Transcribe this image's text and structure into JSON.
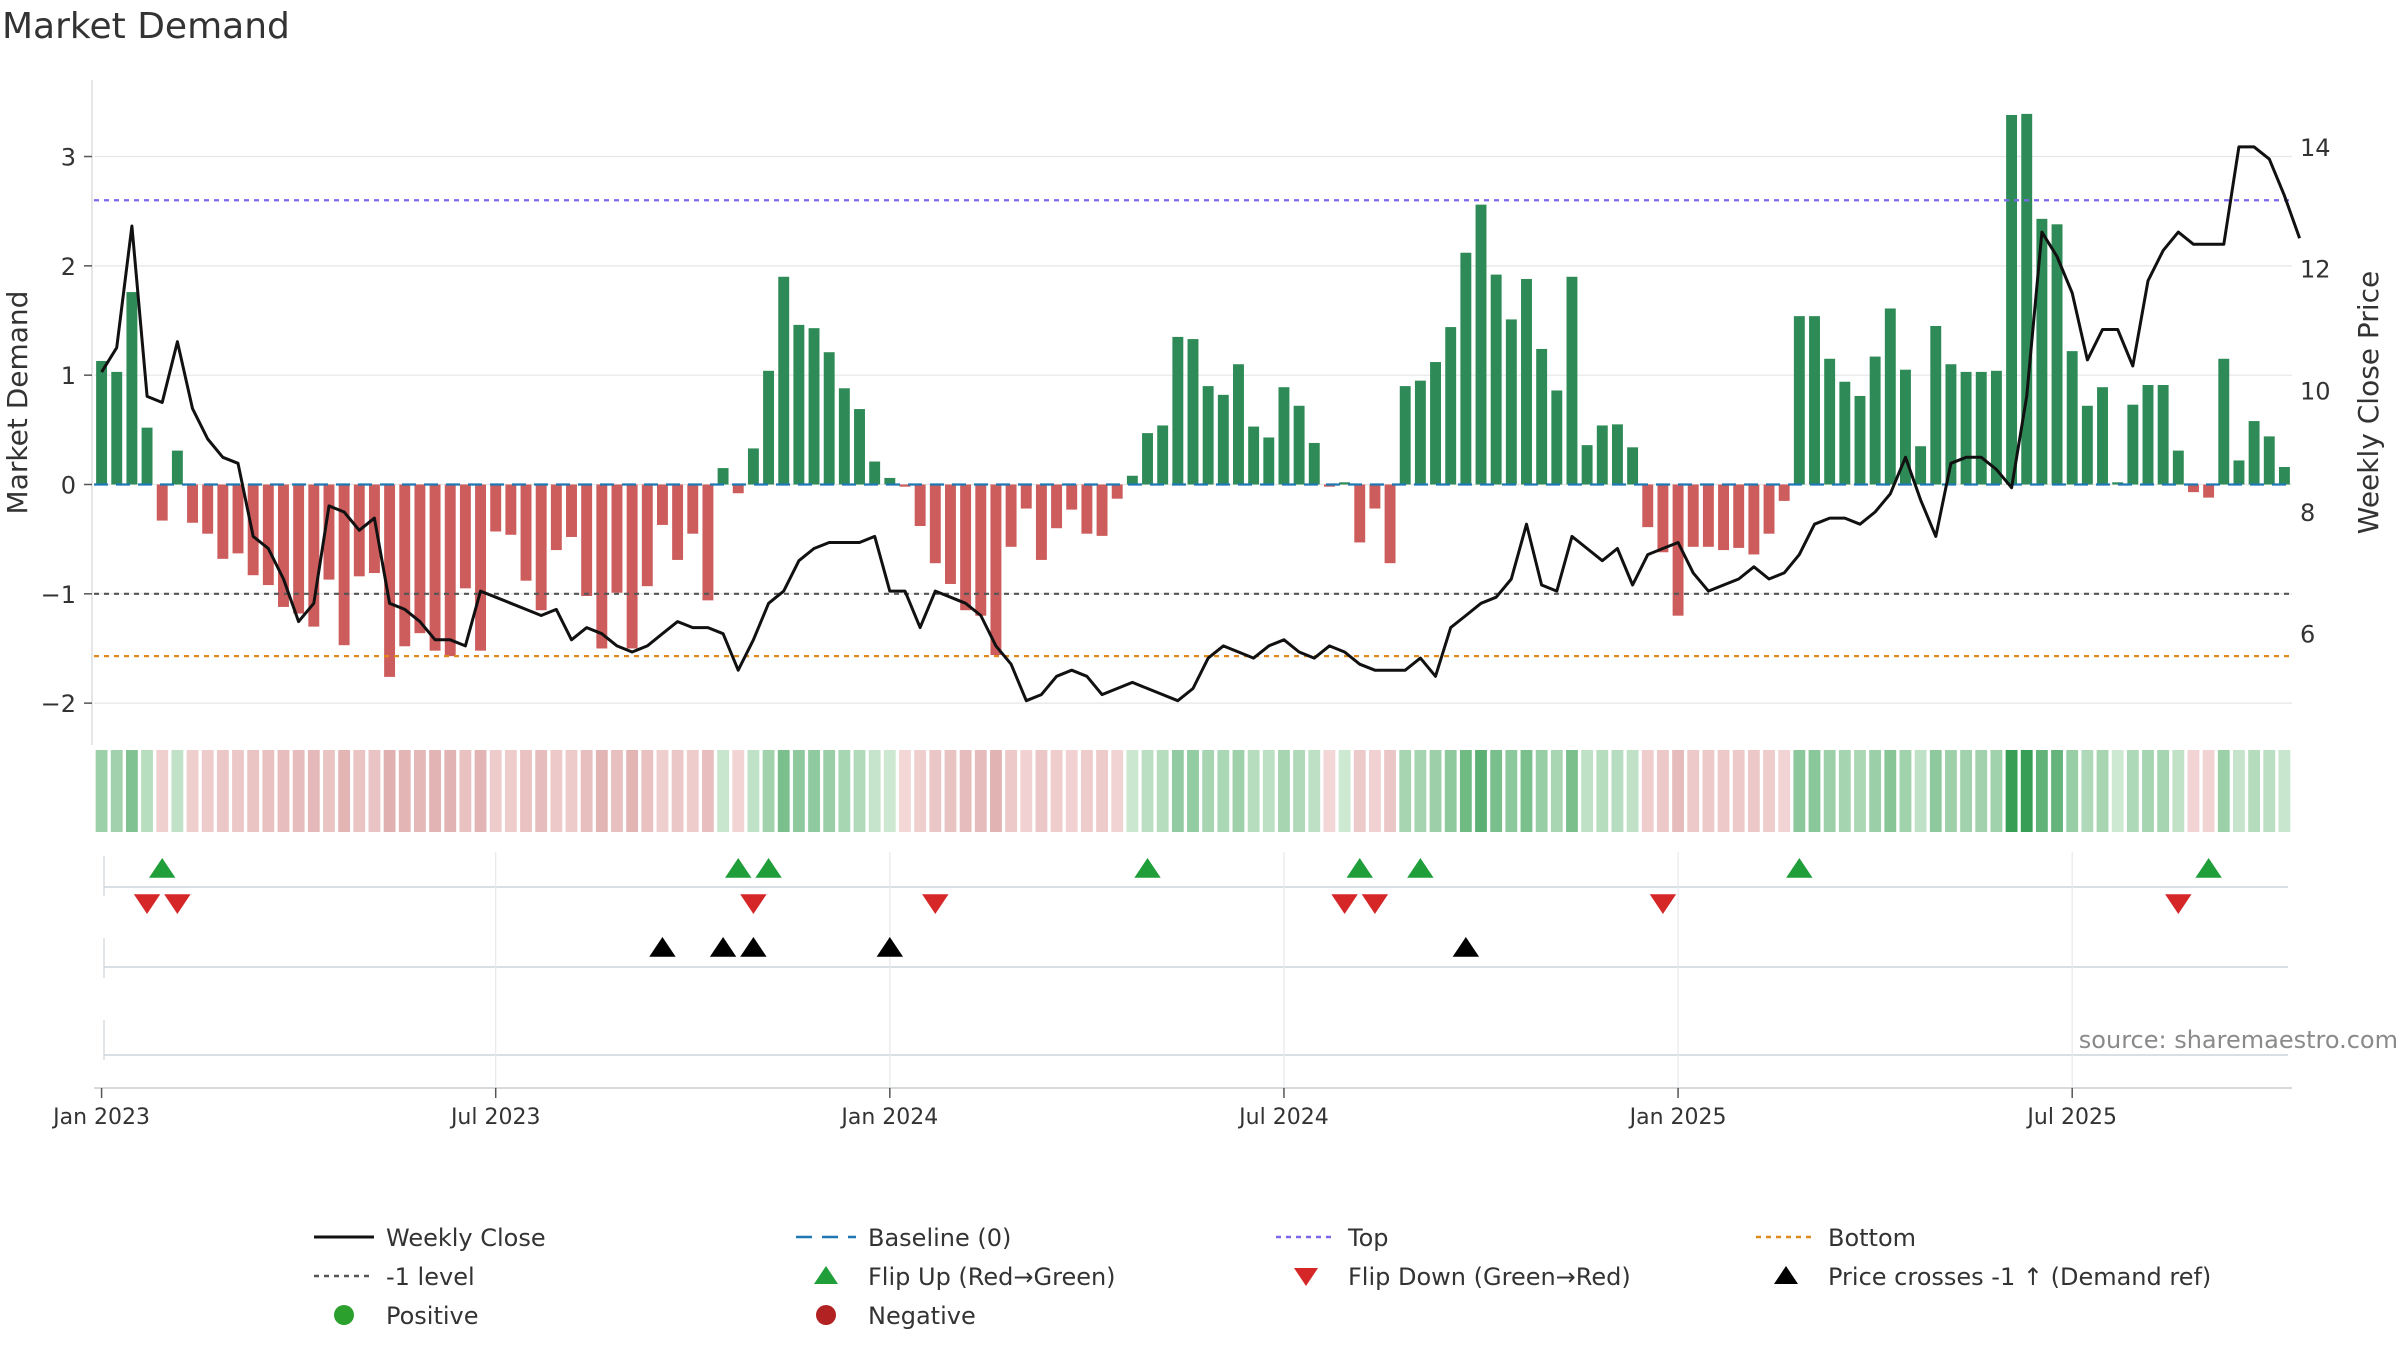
{
  "title": "Market Demand",
  "source": "source: sharemaestro.com",
  "colors": {
    "positive": "#2e8b57",
    "negative": "#cd5c5c",
    "price": "#111111",
    "baseline": "#1f77b4",
    "top": "#7b68ee",
    "bottom": "#e08a1e",
    "minus1": "#555555",
    "flip_up": "#1f9e3a",
    "flip_down": "#d62728",
    "cross": "#000000",
    "legend_pos": "#2ca02c",
    "legend_neg": "#b22222"
  },
  "chart_data": {
    "type": "bar",
    "title": "Market Demand",
    "ylabel": "Market Demand",
    "y2label": "Weekly Close Price",
    "ylim": [
      -2.2,
      3.7
    ],
    "y2lim": [
      4.5,
      15.1
    ],
    "yticks": [
      -2,
      -1,
      0,
      1,
      2,
      3
    ],
    "yticklabels": [
      "−2",
      "−1",
      "0",
      "1",
      "2",
      "3"
    ],
    "y2ticks": [
      6,
      8,
      10,
      12,
      14
    ],
    "y2ticklabels": [
      "6",
      "8",
      "10",
      "12",
      "14"
    ],
    "top_level": 2.6,
    "bottom_level": -1.57,
    "minus1_level": -1,
    "start_date": "2022-12-25",
    "xticks": [
      {
        "week": 1,
        "label": "Jan 2023"
      },
      {
        "week": 27,
        "label": "Jul 2023"
      },
      {
        "week": 53,
        "label": "Jan 2024"
      },
      {
        "week": 79,
        "label": "Jul 2024"
      },
      {
        "week": 105,
        "label": "Jan 2025"
      },
      {
        "week": 131,
        "label": "Jul 2025"
      }
    ],
    "demand": [
      1.13,
      1.03,
      1.76,
      0.52,
      -0.33,
      0.31,
      -0.35,
      -0.45,
      -0.68,
      -0.63,
      -0.83,
      -0.92,
      -1.12,
      -1.18,
      -1.3,
      -0.87,
      -1.47,
      -0.84,
      -0.81,
      -1.76,
      -1.48,
      -1.36,
      -1.52,
      -1.57,
      -0.95,
      -1.52,
      -0.43,
      -0.46,
      -0.88,
      -1.15,
      -0.6,
      -0.48,
      -1.02,
      -1.5,
      -0.99,
      -1.5,
      -0.93,
      -0.37,
      -0.69,
      -0.45,
      -1.06,
      0.15,
      -0.08,
      0.33,
      1.04,
      1.9,
      1.46,
      1.43,
      1.21,
      0.88,
      0.69,
      0.21,
      0.06,
      -0.02,
      -0.38,
      -0.72,
      -0.91,
      -1.15,
      -1.2,
      -1.56,
      -0.57,
      -0.22,
      -0.69,
      -0.4,
      -0.23,
      -0.45,
      -0.47,
      -0.13,
      0.08,
      0.47,
      0.54,
      1.35,
      1.33,
      0.9,
      0.82,
      1.1,
      0.53,
      0.43,
      0.89,
      0.72,
      0.38,
      -0.02,
      0.02,
      -0.53,
      -0.22,
      -0.72,
      0.9,
      0.95,
      1.12,
      1.44,
      2.12,
      2.56,
      1.92,
      1.51,
      1.88,
      1.24,
      0.86,
      1.9,
      0.36,
      0.54,
      0.55,
      0.34,
      -0.39,
      -0.62,
      -1.2,
      -0.57,
      -0.57,
      -0.6,
      -0.58,
      -0.64,
      -0.45,
      -0.15,
      1.54,
      1.54,
      1.15,
      0.94,
      0.81,
      1.17,
      1.61,
      1.05,
      0.35,
      1.45,
      1.1,
      1.03,
      1.03,
      1.04,
      3.38,
      3.39,
      2.43,
      2.38,
      1.22,
      0.72,
      0.89,
      0.02,
      0.73,
      0.91,
      0.91,
      0.31,
      -0.07,
      -0.12,
      1.15,
      0.22,
      0.58,
      0.44,
      0.16
    ],
    "price": [
      10.3,
      10.7,
      12.7,
      9.9,
      9.8,
      10.8,
      9.7,
      9.2,
      8.9,
      8.8,
      7.6,
      7.4,
      6.9,
      6.2,
      6.5,
      8.1,
      8.0,
      7.7,
      7.9,
      6.5,
      6.4,
      6.2,
      5.9,
      5.9,
      5.8,
      6.7,
      6.6,
      6.5,
      6.4,
      6.3,
      6.4,
      5.9,
      6.1,
      6.0,
      5.8,
      5.7,
      5.8,
      6.0,
      6.2,
      6.1,
      6.1,
      6.0,
      5.4,
      5.9,
      6.5,
      6.7,
      7.2,
      7.4,
      7.5,
      7.5,
      7.5,
      7.6,
      6.7,
      6.7,
      6.1,
      6.7,
      6.6,
      6.5,
      6.3,
      5.8,
      5.5,
      4.9,
      5.0,
      5.3,
      5.4,
      5.3,
      5.0,
      5.1,
      5.2,
      5.1,
      5.0,
      4.9,
      5.1,
      5.6,
      5.8,
      5.7,
      5.6,
      5.8,
      5.9,
      5.7,
      5.6,
      5.8,
      5.7,
      5.5,
      5.4,
      5.4,
      5.4,
      5.6,
      5.3,
      6.1,
      6.3,
      6.5,
      6.6,
      6.9,
      7.8,
      6.8,
      6.7,
      7.6,
      7.4,
      7.2,
      7.4,
      6.8,
      7.3,
      7.4,
      7.5,
      7.0,
      6.7,
      6.8,
      6.9,
      7.1,
      6.9,
      7.0,
      7.3,
      7.8,
      7.9,
      7.9,
      7.8,
      8.0,
      8.3,
      8.9,
      8.2,
      7.6,
      8.8,
      8.9,
      8.9,
      8.7,
      8.4,
      9.9,
      12.6,
      12.2,
      11.6,
      10.5,
      11.0,
      11.0,
      10.4,
      11.8,
      12.3,
      12.6,
      12.4,
      12.4,
      12.4,
      14.0,
      14.0,
      13.8,
      13.2,
      12.5
    ],
    "flip_up_weeks": [
      5,
      43,
      45,
      70,
      84,
      88,
      113,
      140
    ],
    "flip_down_weeks": [
      4,
      6,
      44,
      56,
      83,
      85,
      104,
      138
    ],
    "price_cross_weeks": [
      38,
      42,
      44,
      53,
      91
    ]
  },
  "legend": {
    "items": [
      {
        "key": "weekly_close",
        "label": "Weekly Close"
      },
      {
        "key": "baseline",
        "label": "Baseline (0)"
      },
      {
        "key": "top",
        "label": "Top"
      },
      {
        "key": "bottom",
        "label": "Bottom"
      },
      {
        "key": "minus1",
        "label": "-1 level"
      },
      {
        "key": "flip_up",
        "label": "Flip Up (Red→Green)"
      },
      {
        "key": "flip_down",
        "label": "Flip Down (Green→Red)"
      },
      {
        "key": "cross",
        "label": "Price crosses -1 ↑ (Demand ref)"
      },
      {
        "key": "positive",
        "label": "Positive"
      },
      {
        "key": "negative",
        "label": "Negative"
      }
    ]
  }
}
